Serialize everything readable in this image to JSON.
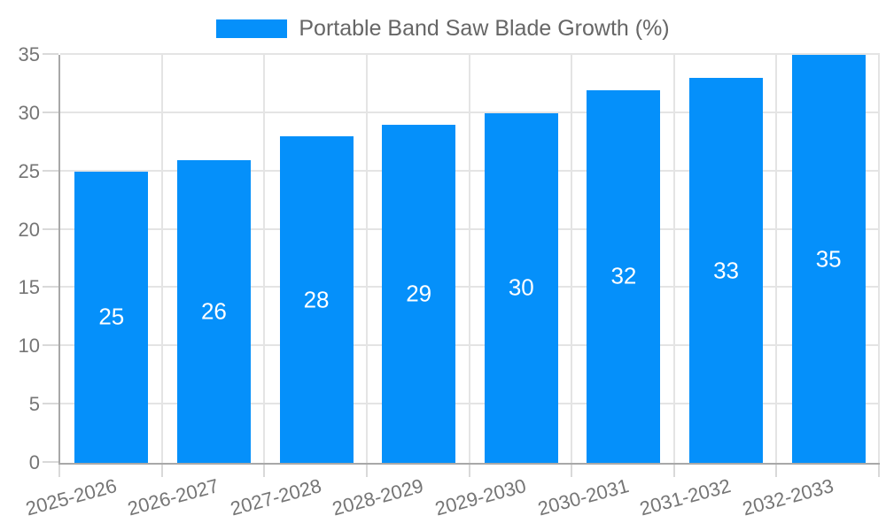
{
  "legend": {
    "label": "Portable Band Saw Blade Growth (%)"
  },
  "colors": {
    "bar": "#0590fa",
    "grid": "#e4e4e4",
    "axis": "#a8a8a8",
    "tick": "#d9d9d9",
    "axis_text": "#757575",
    "legend_text": "#666666",
    "bar_label_text": "#ffffff"
  },
  "chart_data": {
    "type": "bar",
    "title": "Portable Band Saw Blade Growth (%)",
    "categories": [
      "2025-2026",
      "2026-2027",
      "2027-2028",
      "2028-2029",
      "2029-2030",
      "2030-2031",
      "2031-2032",
      "2032-2033"
    ],
    "values": [
      25,
      26,
      28,
      29,
      30,
      32,
      33,
      35
    ],
    "xlabel": "",
    "ylabel": "",
    "ylim": [
      0,
      35
    ],
    "yticks": [
      0,
      5,
      10,
      15,
      20,
      25,
      30,
      35
    ],
    "grid": true,
    "bar_value_labels_shown": true,
    "legend_position": "top"
  }
}
